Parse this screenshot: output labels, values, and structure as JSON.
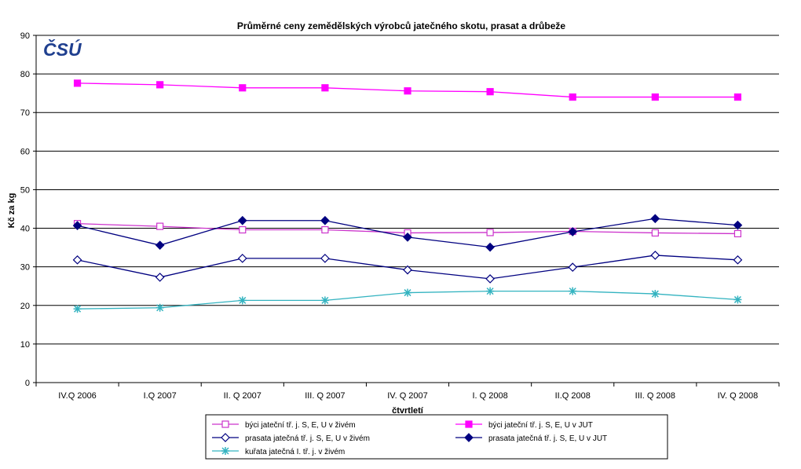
{
  "logo": {
    "text": "ČSÚ",
    "color": "#1f3f8f"
  },
  "chart_data": {
    "type": "line",
    "title": "Průměrné ceny zemědělských výrobců jatečného skotu, prasat a drůbeže",
    "xlabel": "čtvrtletí",
    "ylabel": "Kč za kg",
    "ylim": [
      0,
      90
    ],
    "yticks": [
      0,
      10,
      20,
      30,
      40,
      50,
      60,
      70,
      80,
      90
    ],
    "grid": true,
    "legend_position": "bottom",
    "categories": [
      "IV.Q 2006",
      "I.Q 2007",
      "II. Q 2007",
      "III. Q 2007",
      "IV. Q 2007",
      "I. Q 2008",
      "II.Q 2008",
      "III. Q 2008",
      "IV. Q 2008"
    ],
    "series": [
      {
        "name": "býci jateční tř. j. S, E, U v živém",
        "color": "#cc33cc",
        "marker": "square-open",
        "values": [
          41.2,
          40.5,
          39.6,
          39.6,
          38.8,
          38.9,
          39.2,
          38.8,
          38.6
        ]
      },
      {
        "name": "býci jateční tř. j. S, E, U v JUT",
        "color": "#ff00ff",
        "marker": "square-filled",
        "values": [
          77.6,
          77.2,
          76.4,
          76.4,
          75.6,
          75.4,
          74.0,
          74.0,
          74.0
        ]
      },
      {
        "name": "prasata jatečná tř. j. S, E, U v živém",
        "color": "#000080",
        "marker": "diamond-open",
        "values": [
          31.8,
          27.3,
          32.2,
          32.2,
          29.2,
          26.9,
          29.9,
          33.0,
          31.8
        ]
      },
      {
        "name": "prasata jatečná tř. j. S, E, U v JUT",
        "color": "#000080",
        "marker": "diamond-filled",
        "values": [
          40.7,
          35.6,
          42.0,
          42.0,
          37.7,
          35.1,
          39.1,
          42.5,
          40.8
        ]
      },
      {
        "name": "kuřata jatečná I. tř. j. v živém",
        "color": "#33b3c0",
        "marker": "asterisk",
        "values": [
          19.1,
          19.4,
          21.3,
          21.3,
          23.3,
          23.7,
          23.7,
          23.0,
          21.5
        ]
      }
    ]
  }
}
